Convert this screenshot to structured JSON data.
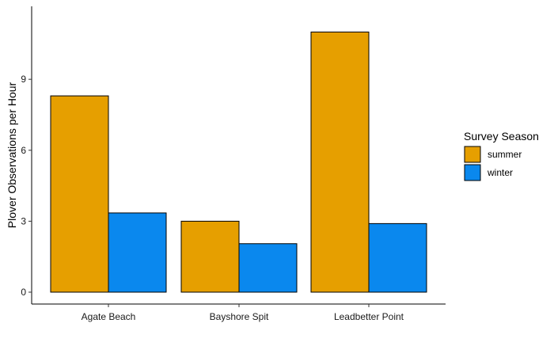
{
  "chart_data": {
    "type": "bar",
    "title": "",
    "xlabel": "",
    "ylabel": "Plover Observations per Hour",
    "categories": [
      "Agate Beach",
      "Bayshore Spit",
      "Leadbetter Point"
    ],
    "series": [
      {
        "name": "summer",
        "values": [
          8.3,
          3.0,
          11.0
        ],
        "color": "#E69F00"
      },
      {
        "name": "winter",
        "values": [
          3.35,
          2.05,
          2.9
        ],
        "color": "#0A88EE"
      }
    ],
    "ylim": [
      0,
      11.55
    ],
    "yticks": [
      0,
      3,
      6,
      9
    ],
    "ytick_labels": [
      "0",
      "3",
      "6",
      "9"
    ],
    "legend": {
      "title": "Survey Season",
      "placement": "right"
    },
    "grid": false
  }
}
